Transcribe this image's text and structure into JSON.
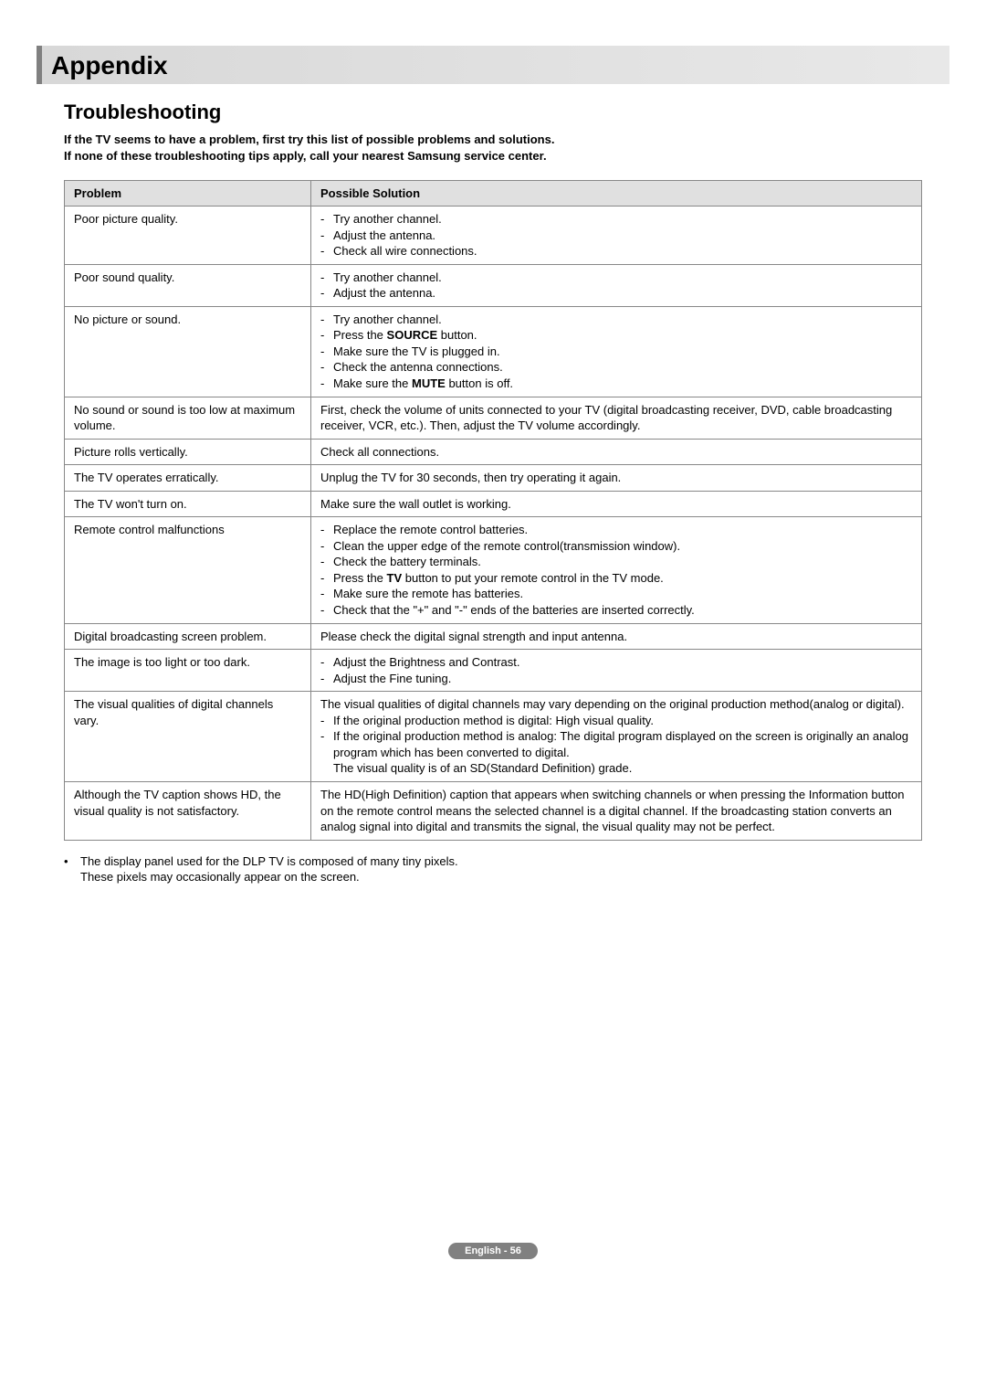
{
  "title": "Appendix",
  "section_heading": "Troubleshooting",
  "intro_line1": "If the TV seems to have a problem, first try this list of possible problems and solutions.",
  "intro_line2": "If none of these troubleshooting tips apply, call your nearest Samsung service center.",
  "table": {
    "header_problem": "Problem",
    "header_solution": "Possible Solution",
    "rows": [
      {
        "problem": "Poor picture quality.",
        "solutions": [
          "Try another channel.",
          "Adjust the antenna.",
          "Check all wire connections."
        ],
        "type": "list"
      },
      {
        "problem": "Poor sound quality.",
        "solutions": [
          "Try another channel.",
          "Adjust the antenna."
        ],
        "type": "list"
      },
      {
        "problem": "No picture or sound.",
        "solutions_html": [
          "Try another channel.",
          "Press the <b>SOURCE</b> button.",
          "Make sure the TV is plugged in.",
          "Check the antenna connections.",
          "Make sure the <b>MUTE</b> button is off."
        ],
        "type": "list_html"
      },
      {
        "problem": "No sound or sound is too low at maximum volume.",
        "solution_text": "First, check the volume of units connected to your TV (digital broadcasting receiver, DVD, cable broadcasting receiver, VCR, etc.). Then, adjust the TV volume accordingly.",
        "type": "text"
      },
      {
        "problem": "Picture rolls vertically.",
        "solution_text": "Check all connections.",
        "type": "text"
      },
      {
        "problem": "The TV operates erratically.",
        "solution_text": "Unplug the TV for 30 seconds, then try operating it again.",
        "type": "text"
      },
      {
        "problem": "The TV won't turn on.",
        "solution_text": "Make sure the wall outlet is working.",
        "type": "text"
      },
      {
        "problem": "Remote control malfunctions",
        "solutions_html": [
          "Replace the remote control batteries.",
          "Clean the upper edge of the remote control(transmission window).",
          "Check the battery terminals.",
          "Press the <b>TV</b> button to put your remote control in the TV mode.",
          "Make sure the remote has batteries.",
          "Check that the \"+\" and \"-\" ends of the batteries are inserted correctly."
        ],
        "type": "list_html"
      },
      {
        "problem": "Digital broadcasting screen problem.",
        "solution_text": "Please check the digital signal strength and input antenna.",
        "type": "text"
      },
      {
        "problem": "The image is too light or too dark.",
        "solutions": [
          "Adjust the Brightness and Contrast.",
          "Adjust the Fine tuning."
        ],
        "type": "list"
      },
      {
        "problem": "The visual qualities of digital channels vary.",
        "solution_complex": {
          "intro": "The visual qualities of digital channels may vary depending on the original production method(analog or digital).",
          "items": [
            "If the original production method is digital: High visual quality.",
            "If the original production method is analog: The digital program displayed on the screen is originally an analog program which has been converted to digital."
          ],
          "outro": "The visual quality is of an SD(Standard Definition) grade."
        },
        "type": "complex"
      },
      {
        "problem": "Although the TV caption shows HD, the visual quality is not satisfactory.",
        "solution_text": "The HD(High Definition) caption that appears when switching channels or when pressing the Information button on the remote control means the selected channel is a digital channel. If the broadcasting station converts an analog signal into digital and transmits the signal, the visual quality may not be perfect.",
        "type": "text"
      }
    ]
  },
  "footnote_line1": "The display panel used for the DLP TV is composed of many tiny pixels.",
  "footnote_line2": "These pixels may occasionally appear on the screen.",
  "page_label": "English - 56",
  "colors": {
    "title_bg_start": "#d8d8d8",
    "title_bg_end": "#e8e8e8",
    "title_border": "#808080",
    "th_bg": "#e0e0e0",
    "border": "#888888",
    "badge_bg": "#808080",
    "badge_text": "#ffffff"
  }
}
